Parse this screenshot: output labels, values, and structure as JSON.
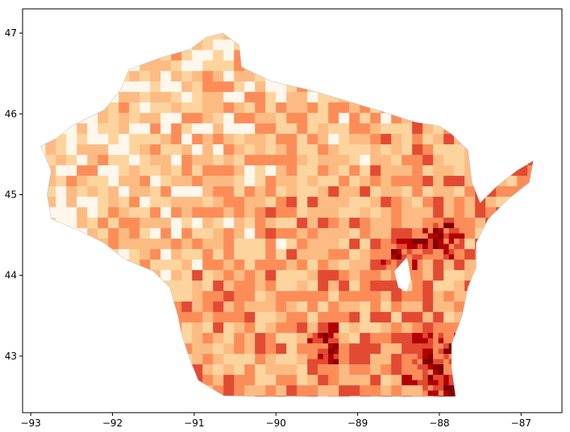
{
  "chart_data": {
    "type": "heatmap",
    "title": "",
    "xlabel": "",
    "ylabel": "",
    "xlim": [
      -93.1,
      -86.5
    ],
    "ylim": [
      42.3,
      47.3
    ],
    "xticks": [
      -93,
      -92,
      -91,
      -90,
      -89,
      -88,
      -87
    ],
    "yticks": [
      43,
      44,
      45,
      46,
      47
    ],
    "xtick_labels": [
      "−93",
      "−92",
      "−91",
      "−90",
      "−89",
      "−88",
      "−87"
    ],
    "ytick_labels": [
      "43",
      "44",
      "45",
      "46",
      "47"
    ],
    "colormap": "OrRd",
    "palette": [
      "#fff7ec",
      "#fdd49e",
      "#fdbb84",
      "#fc8d59",
      "#e34a33",
      "#b30000",
      "#7f0000"
    ],
    "grid": false,
    "legend": "none",
    "outline_lonlat": [
      [
        -92.88,
        45.6
      ],
      [
        -92.68,
        45.7
      ],
      [
        -92.5,
        45.85
      ],
      [
        -92.3,
        45.95
      ],
      [
        -92.1,
        46.05
      ],
      [
        -91.9,
        46.3
      ],
      [
        -91.8,
        46.55
      ],
      [
        -91.4,
        46.7
      ],
      [
        -91.05,
        46.8
      ],
      [
        -90.85,
        46.95
      ],
      [
        -90.65,
        47.0
      ],
      [
        -90.45,
        46.85
      ],
      [
        -90.42,
        46.58
      ],
      [
        -90.05,
        46.4
      ],
      [
        -89.6,
        46.3
      ],
      [
        -89.1,
        46.15
      ],
      [
        -88.7,
        46.03
      ],
      [
        -88.3,
        45.9
      ],
      [
        -88.0,
        45.85
      ],
      [
        -87.85,
        45.75
      ],
      [
        -87.65,
        45.55
      ],
      [
        -87.6,
        45.15
      ],
      [
        -87.5,
        44.9
      ],
      [
        -87.3,
        45.1
      ],
      [
        -87.05,
        45.3
      ],
      [
        -86.85,
        45.42
      ],
      [
        -86.9,
        45.15
      ],
      [
        -87.15,
        44.95
      ],
      [
        -87.4,
        44.7
      ],
      [
        -87.55,
        44.4
      ],
      [
        -87.55,
        44.1
      ],
      [
        -87.65,
        43.85
      ],
      [
        -87.72,
        43.5
      ],
      [
        -87.85,
        43.15
      ],
      [
        -87.85,
        42.85
      ],
      [
        -87.8,
        42.5
      ],
      [
        -88.3,
        42.5
      ],
      [
        -88.8,
        42.5
      ],
      [
        -89.3,
        42.5
      ],
      [
        -89.8,
        42.5
      ],
      [
        -90.2,
        42.5
      ],
      [
        -90.64,
        42.51
      ],
      [
        -90.95,
        42.7
      ],
      [
        -91.05,
        42.95
      ],
      [
        -91.15,
        43.25
      ],
      [
        -91.2,
        43.5
      ],
      [
        -91.3,
        43.85
      ],
      [
        -91.5,
        44.05
      ],
      [
        -91.85,
        44.2
      ],
      [
        -92.1,
        44.4
      ],
      [
        -92.4,
        44.55
      ],
      [
        -92.75,
        44.7
      ],
      [
        -92.8,
        45.0
      ],
      [
        -92.75,
        45.3
      ],
      [
        -92.88,
        45.6
      ]
    ],
    "lake_lonlat": [
      [
        -88.4,
        44.22
      ],
      [
        -88.55,
        44.05
      ],
      [
        -88.5,
        43.85
      ],
      [
        -88.4,
        43.8
      ],
      [
        -88.35,
        43.95
      ],
      [
        -88.38,
        44.15
      ]
    ],
    "high_density_lonlat": [
      [
        -87.98,
        43.05
      ],
      [
        -88.08,
        42.85
      ],
      [
        -87.92,
        42.7
      ],
      [
        -88.0,
        44.5
      ],
      [
        -88.45,
        44.2
      ],
      [
        -89.4,
        43.07
      ]
    ]
  }
}
